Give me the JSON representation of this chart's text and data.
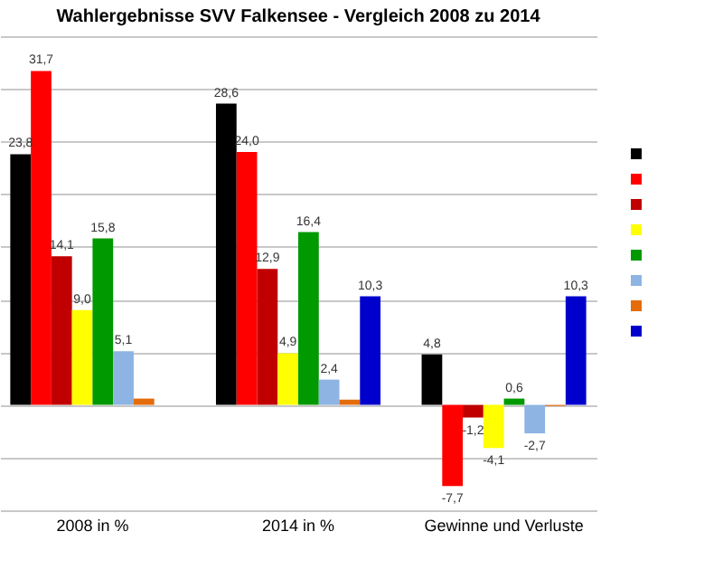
{
  "chart_data": {
    "type": "bar",
    "title": "Wahlergebnisse SVV Falkensee - Vergleich 2008 zu 2014",
    "categories": [
      "2008 in %",
      "2014 in %",
      "Gewinne und Verluste"
    ],
    "series": [
      {
        "color": "#000000",
        "values": [
          23.8,
          28.6,
          4.8
        ],
        "value_labels": [
          "23,8",
          "28,6",
          "4,8"
        ]
      },
      {
        "color": "#ff0000",
        "values": [
          31.7,
          24.0,
          -7.7
        ],
        "value_labels": [
          "31,7",
          "24,0",
          "-7,7"
        ]
      },
      {
        "color": "#c00000",
        "values": [
          14.1,
          12.9,
          -1.2
        ],
        "value_labels": [
          "14,1",
          "12,9",
          "-1,2"
        ]
      },
      {
        "color": "#ffff00",
        "values": [
          9.0,
          4.9,
          -4.1
        ],
        "value_labels": [
          "9,0",
          "4,9",
          "-4,1"
        ]
      },
      {
        "color": "#009900",
        "values": [
          15.8,
          16.4,
          0.6
        ],
        "value_labels": [
          "15,8",
          "16,4",
          "0,6"
        ]
      },
      {
        "color": "#8db4e2",
        "values": [
          5.1,
          2.4,
          -2.7
        ],
        "value_labels": [
          "5,1",
          "2,4",
          "-2,7"
        ]
      },
      {
        "color": "#e46c0a",
        "values": [
          0.6,
          0.5,
          -0.1
        ],
        "value_labels": [
          null,
          null,
          null
        ]
      },
      {
        "color": "#0000cc",
        "values": [
          null,
          10.3,
          10.3
        ],
        "value_labels": [
          null,
          "10,3",
          "10,3"
        ]
      }
    ],
    "tick_labels": "x",
    "grid": "y"
  }
}
